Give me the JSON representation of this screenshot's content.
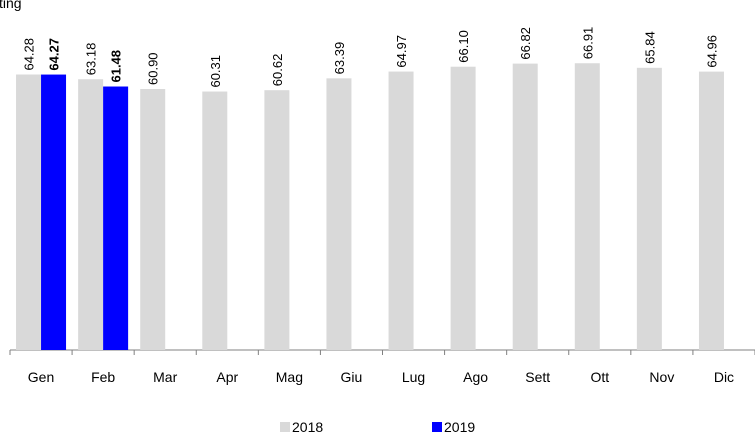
{
  "chart_data": {
    "type": "bar",
    "title": "sting",
    "categories": [
      "Gen",
      "Feb",
      "Mar",
      "Apr",
      "Mag",
      "Giu",
      "Lug",
      "Ago",
      "Sett",
      "Ott",
      "Nov",
      "Dic"
    ],
    "series": [
      {
        "name": "2018",
        "color": "#d9d9d9",
        "values": [
          64.28,
          63.18,
          60.9,
          60.31,
          60.62,
          63.39,
          64.97,
          66.1,
          66.82,
          66.91,
          65.84,
          64.96
        ],
        "value_labels": [
          "64.28",
          "63.18",
          "60.90",
          "60.31",
          "60.62",
          "63.39",
          "64.97",
          "66.10",
          "66.82",
          "66.91",
          "65.84",
          "64.96"
        ]
      },
      {
        "name": "2019",
        "color": "#0000ff",
        "values": [
          64.27,
          61.48,
          null,
          null,
          null,
          null,
          null,
          null,
          null,
          null,
          null,
          null
        ],
        "value_labels": [
          "64.27",
          "61.48",
          null,
          null,
          null,
          null,
          null,
          null,
          null,
          null,
          null,
          null
        ]
      }
    ],
    "ylim": [
      0,
      70
    ]
  }
}
